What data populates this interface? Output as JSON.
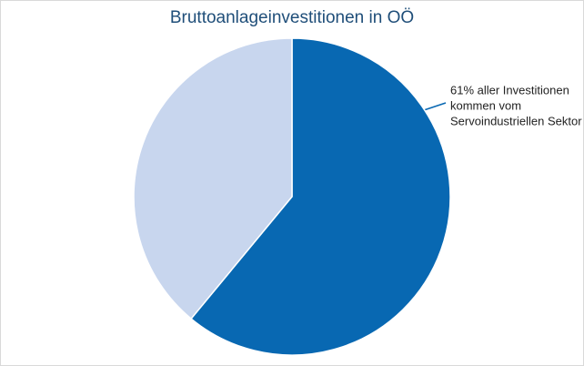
{
  "chart_data": {
    "type": "pie",
    "title": "Bruttoanlageinvestitionen in OÖ",
    "categories": [
      null,
      null
    ],
    "values": [
      61,
      39
    ],
    "colors": [
      "#0868b2",
      "#c8d6ee"
    ],
    "annotation": [
      "61% aller Investitionen",
      "kommen vom",
      "Servoindustriellen Sektor"
    ]
  }
}
